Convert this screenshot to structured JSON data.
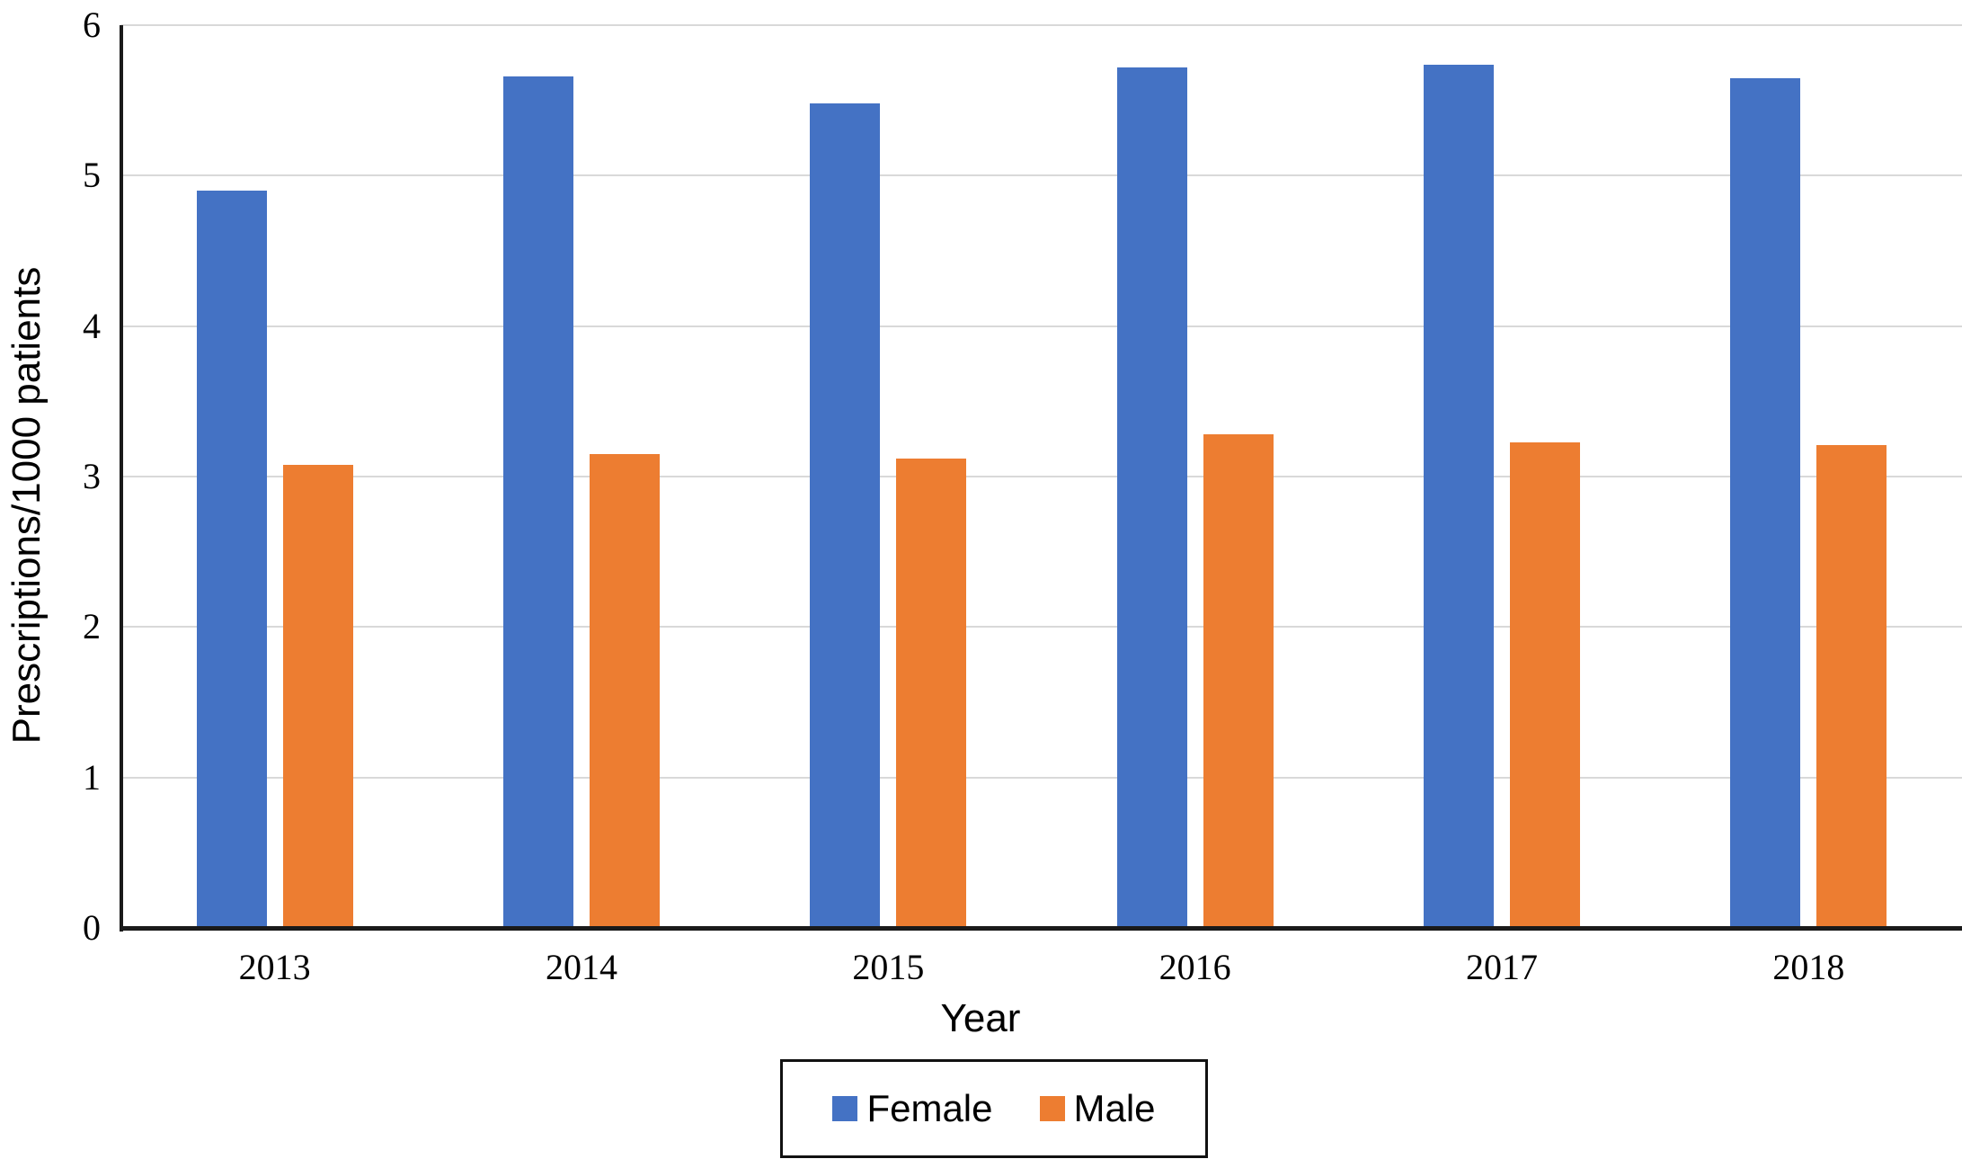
{
  "figure": {
    "x_axis_title": "Year",
    "y_axis_title": "Prescriptions/1000 patients"
  },
  "chart_data": {
    "type": "bar",
    "categories": [
      "2013",
      "2014",
      "2015",
      "2016",
      "2017",
      "2018"
    ],
    "series": [
      {
        "name": "Female",
        "color": "#4472C4",
        "values": [
          4.9,
          5.66,
          5.48,
          5.72,
          5.74,
          5.65
        ]
      },
      {
        "name": "Male",
        "color": "#ED7D31",
        "values": [
          3.08,
          3.15,
          3.12,
          3.28,
          3.23,
          3.21
        ]
      }
    ],
    "title": "",
    "xlabel": "Year",
    "ylabel": "Prescriptions/1000 patients",
    "ylim": [
      0,
      6
    ],
    "yticks": [
      0,
      1,
      2,
      3,
      4,
      5,
      6
    ],
    "grid": true,
    "legend_position": "bottom-boxed",
    "colors": {
      "gridline": "#D9D9D9",
      "axis": "#1A1A1A",
      "text": "#000000"
    }
  }
}
